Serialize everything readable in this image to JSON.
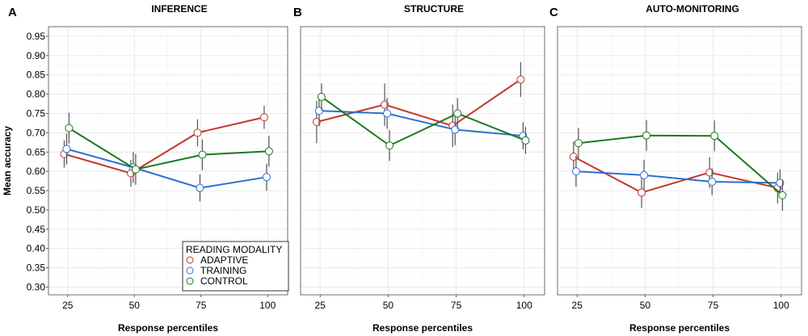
{
  "chart_data": {
    "type": "line",
    "ylabel": "Mean accuracy",
    "xlabel": "Response percentiles",
    "ylim": [
      0.28,
      0.975
    ],
    "yticks": [
      0.3,
      0.35,
      0.4,
      0.45,
      0.5,
      0.55,
      0.6,
      0.65,
      0.7,
      0.75,
      0.8,
      0.85,
      0.9,
      0.95
    ],
    "xticks": [
      25,
      50,
      75,
      100
    ],
    "grid": true,
    "legend": {
      "title": "READING MODALITY",
      "position": "bottom-right of panel A",
      "entries": [
        {
          "name": "ADAPTIVE",
          "color": "#c0392b"
        },
        {
          "name": "TRAINING",
          "color": "#2e6fd1"
        },
        {
          "name": "CONTROL",
          "color": "#1a7a1a"
        }
      ]
    },
    "panels": [
      {
        "letter": "A",
        "title": "INFERENCE",
        "series": [
          {
            "name": "ADAPTIVE",
            "color": "#c0392b",
            "x": [
              25,
              50,
              75,
              100
            ],
            "y": [
              0.645,
              0.595,
              0.7,
              0.74
            ],
            "err": [
              0.035,
              0.035,
              0.035,
              0.03
            ]
          },
          {
            "name": "TRAINING",
            "color": "#2e6fd1",
            "x": [
              25,
              50,
              75,
              100
            ],
            "y": [
              0.658,
              0.61,
              0.557,
              0.585
            ],
            "err": [
              0.04,
              0.04,
              0.035,
              0.035
            ]
          },
          {
            "name": "CONTROL",
            "color": "#1a7a1a",
            "x": [
              25,
              50,
              75,
              100
            ],
            "y": [
              0.712,
              0.605,
              0.643,
              0.652
            ],
            "err": [
              0.04,
              0.04,
              0.04,
              0.04
            ]
          }
        ]
      },
      {
        "letter": "B",
        "title": "STRUCTURE",
        "series": [
          {
            "name": "ADAPTIVE",
            "color": "#c0392b",
            "x": [
              25,
              50,
              75,
              100
            ],
            "y": [
              0.728,
              0.773,
              0.718,
              0.838
            ],
            "err": [
              0.055,
              0.055,
              0.055,
              0.045
            ]
          },
          {
            "name": "TRAINING",
            "color": "#2e6fd1",
            "x": [
              25,
              50,
              75,
              100
            ],
            "y": [
              0.757,
              0.75,
              0.708,
              0.692
            ],
            "err": [
              0.04,
              0.04,
              0.04,
              0.035
            ]
          },
          {
            "name": "CONTROL",
            "color": "#1a7a1a",
            "x": [
              25,
              50,
              75,
              100
            ],
            "y": [
              0.793,
              0.667,
              0.75,
              0.68
            ],
            "err": [
              0.035,
              0.04,
              0.04,
              0.035
            ]
          }
        ]
      },
      {
        "letter": "C",
        "title": "AUTO-MONITORING",
        "series": [
          {
            "name": "ADAPTIVE",
            "color": "#c0392b",
            "x": [
              25,
              50,
              75,
              100
            ],
            "y": [
              0.638,
              0.545,
              0.597,
              0.557
            ],
            "err": [
              0.04,
              0.04,
              0.04,
              0.04
            ]
          },
          {
            "name": "TRAINING",
            "color": "#2e6fd1",
            "x": [
              25,
              50,
              75,
              100
            ],
            "y": [
              0.6,
              0.59,
              0.573,
              0.57
            ],
            "err": [
              0.04,
              0.04,
              0.035,
              0.035
            ]
          },
          {
            "name": "CONTROL",
            "color": "#1a7a1a",
            "x": [
              25,
              50,
              75,
              100
            ],
            "y": [
              0.673,
              0.693,
              0.692,
              0.538
            ],
            "err": [
              0.04,
              0.04,
              0.04,
              0.04
            ]
          }
        ]
      }
    ]
  }
}
